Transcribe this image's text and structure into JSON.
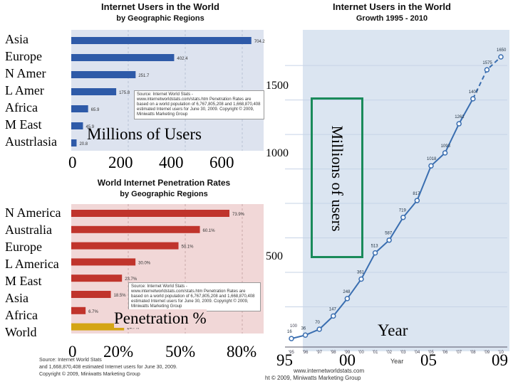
{
  "colors": {
    "bar_blue": "#2e5aa8",
    "bar_red": "#c0342c",
    "bar_gold": "#d4a514",
    "line_blue": "#3a6eb0",
    "box_green": "#1a8a5a"
  },
  "chart1": {
    "title": "Internet Users in the World",
    "subtitle": "by Geographic Regions",
    "overlay_label": "Millions of Users",
    "note": "Source: Internet World Stats - www.internetworldstats.com/stats.htm Penetration Rates are based on a world population of 6,767,805,208 and 1,668,870,408 estimated Internet users for June 30, 2009. Copyright © 2009, Miniwatts Marketing Group"
  },
  "chart2": {
    "title": "World Internet Penetration Rates",
    "subtitle": "by Geographic Regions",
    "overlay_label": "Penetration %",
    "note": "Source: Internet World Stats - www.internetworldstats.com/stats.htm Penetration Rates are based on a world population of 6,767,805,208 and 1,668,870,408 estimated Internet users for June 30, 2009. Copyright © 2009, Miniwatts Marketing Group",
    "bottom_note_line1": "Source: Internet World Stats",
    "bottom_note_line2": "and 1,668,870,408 estimated Internet users for June 30, 2009.",
    "bottom_note_line3": "Copyright © 2009, Miniwatts Marketing Group"
  },
  "chart3": {
    "title": "Internet Users in the World",
    "subtitle": "Growth 1995 - 2010",
    "ylabel": "Millions of users",
    "xlabel": "Year",
    "inner_xlabel": "Year",
    "bottom_note_line1": "www.internetworldstats.com",
    "bottom_note_line2": "ht © 2009, Miniwatts Marketing Group"
  },
  "chart_data": [
    {
      "type": "bar",
      "title": "Internet Users in the World",
      "subtitle": "by Geographic Regions",
      "xlabel": "Millions of Users",
      "categories": [
        "Asia",
        "Europe",
        "N Amer",
        "L Amer",
        "Africa",
        "M East",
        "Austrlasia"
      ],
      "values": [
        704.2,
        402.4,
        251.7,
        175.8,
        65.9,
        45.9,
        20.8
      ],
      "value_labels": [
        "704.2",
        "402.4",
        "251.7",
        "175.8",
        "65.9",
        "45.9",
        "20.8"
      ],
      "xticks": [
        "0",
        "200",
        "400",
        "600"
      ],
      "xlim": [
        0,
        700
      ]
    },
    {
      "type": "bar",
      "title": "World Internet Penetration Rates",
      "subtitle": "by Geographic Regions",
      "xlabel": "Penetration %",
      "categories": [
        "N America",
        "Australia",
        "Europe",
        "L America",
        "M East",
        "Asia",
        "Africa",
        "World"
      ],
      "values": [
        73.9,
        60.1,
        50.1,
        30.0,
        23.7,
        18.5,
        6.7,
        24.7
      ],
      "value_labels": [
        "73.9%",
        "60.1%",
        "50.1%",
        "30.0%",
        "23.7%",
        "18.5%",
        "6.7%",
        "24.7%"
      ],
      "xticks": [
        "0",
        "20%",
        "50%",
        "80%"
      ],
      "xlim": [
        0,
        80
      ]
    },
    {
      "type": "line",
      "title": "Internet Users in the World",
      "subtitle": "Growth 1995 - 2010",
      "ylabel": "Millions of users",
      "xlabel": "Year",
      "x": [
        "95",
        "96",
        "97",
        "98",
        "99",
        "00",
        "01",
        "02",
        "03",
        "04",
        "05",
        "06",
        "07",
        "08",
        "09",
        "10"
      ],
      "values": [
        16,
        36,
        70,
        147,
        248,
        361,
        513,
        587,
        719,
        817,
        1018,
        1093,
        1262,
        1407,
        1575,
        1650
      ],
      "value_labels": [
        "16",
        "36",
        "70",
        "147",
        "248",
        "361",
        "513",
        "587",
        "719",
        "817",
        "1018",
        "1093",
        "1262",
        "1407",
        "1575",
        "1650"
      ],
      "projected_from_index": 13,
      "yticks": [
        "500",
        "1000",
        "1500"
      ],
      "xticks": [
        "95",
        "00",
        "05",
        "09"
      ],
      "inner_xticks": [
        "'95",
        "'96",
        "'97",
        "'98",
        "'99",
        "'00",
        "'01",
        "'02",
        "'03",
        "'04",
        "'05",
        "'06",
        "'07",
        "'08",
        "'09",
        "'10"
      ],
      "inner_yticks": [
        "100"
      ],
      "ylim": [
        0,
        1700
      ]
    }
  ]
}
